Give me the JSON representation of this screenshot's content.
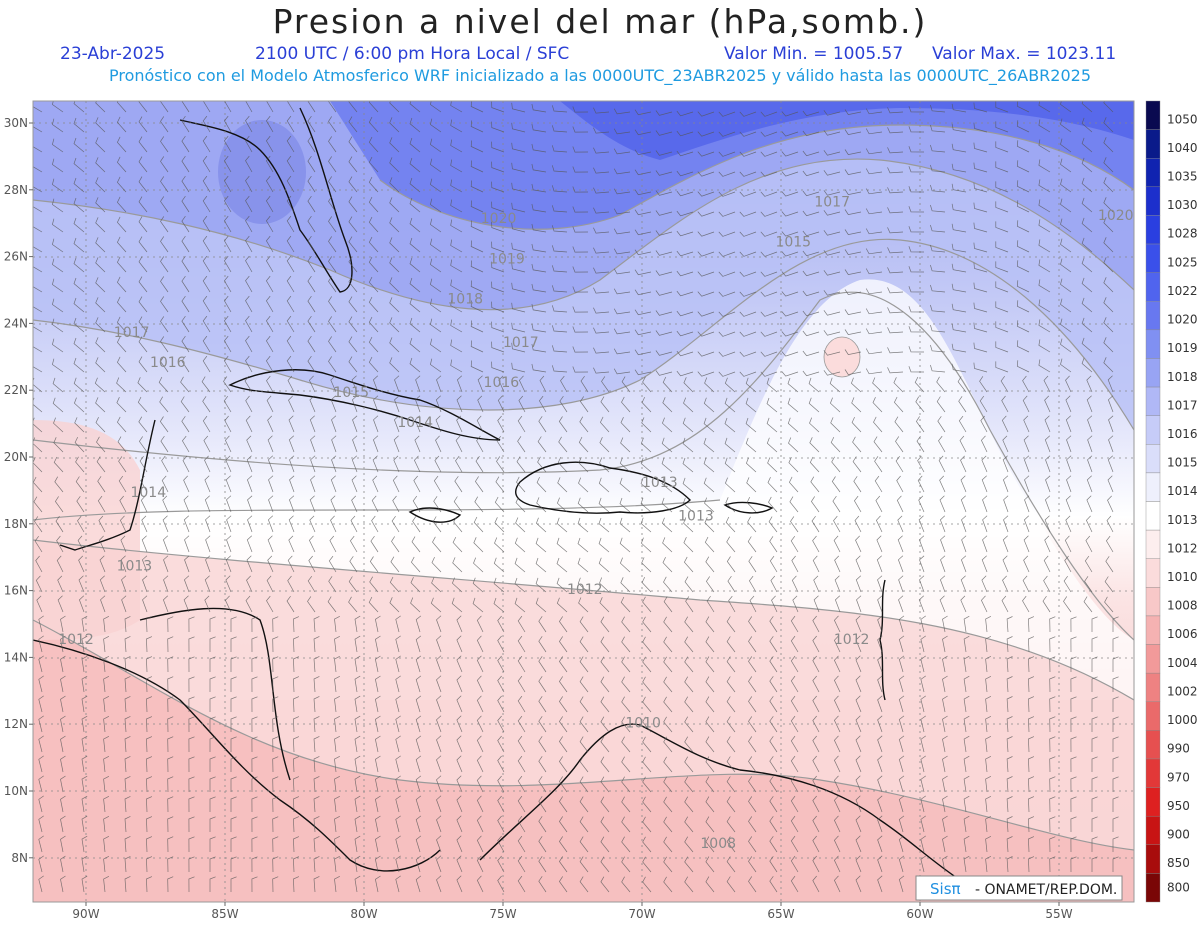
{
  "header": {
    "title": "Presion a nivel del mar (hPa,somb.)",
    "date": "23-Abr-2025",
    "time": "2100 UTC / 6:00 pm Hora Local / SFC",
    "min": "Valor Min. = 1005.57",
    "max": "Valor Max. = 1023.11",
    "forecast": "Pronóstico con el Modelo Atmosferico WRF inicializado a las 0000UTC_23ABR2025 y válido hasta las  0000UTC_26ABR2025"
  },
  "axes": {
    "lat_labels": [
      "30N",
      "28N",
      "26N",
      "24N",
      "22N",
      "20N",
      "18N",
      "16N",
      "14N",
      "12N",
      "10N",
      "8N"
    ],
    "lon_labels": [
      "90W",
      "85W",
      "80W",
      "75W",
      "70W",
      "65W",
      "60W",
      "55W"
    ]
  },
  "colorbar": [
    {
      "label": "1050",
      "color": "#0a0a50"
    },
    {
      "label": "1040",
      "color": "#0a1a8a"
    },
    {
      "label": "1035",
      "color": "#1023b0"
    },
    {
      "label": "1030",
      "color": "#1c2fcc"
    },
    {
      "label": "1028",
      "color": "#2a3fe0"
    },
    {
      "label": "1025",
      "color": "#3a50ea"
    },
    {
      "label": "1022",
      "color": "#5064ee"
    },
    {
      "label": "1020",
      "color": "#6878f0"
    },
    {
      "label": "1019",
      "color": "#8090f2"
    },
    {
      "label": "1018",
      "color": "#98a4f4"
    },
    {
      "label": "1017",
      "color": "#b0b8f6"
    },
    {
      "label": "1016",
      "color": "#c6ccf8"
    },
    {
      "label": "1015",
      "color": "#dadefa"
    },
    {
      "label": "1014",
      "color": "#eef0fc"
    },
    {
      "label": "1013",
      "color": "#ffffff"
    },
    {
      "label": "1012",
      "color": "#fdeeee"
    },
    {
      "label": "1010",
      "color": "#fbdcdc"
    },
    {
      "label": "1008",
      "color": "#f8c8c8"
    },
    {
      "label": "1006",
      "color": "#f5b2b2"
    },
    {
      "label": "1004",
      "color": "#f29a9a"
    },
    {
      "label": "1002",
      "color": "#ee8282"
    },
    {
      "label": "1000",
      "color": "#ea6a6a"
    },
    {
      "label": "990",
      "color": "#e65050"
    },
    {
      "label": "970",
      "color": "#e23838"
    },
    {
      "label": "950",
      "color": "#de2020"
    },
    {
      "label": "900",
      "color": "#c81414"
    },
    {
      "label": "850",
      "color": "#a80c0c"
    },
    {
      "label": "800",
      "color": "#7a0606"
    }
  ],
  "contour_labels": [
    {
      "text": "1017",
      "lon": -63.8,
      "lat": 27.5
    },
    {
      "text": "1020",
      "lon": -53.6,
      "lat": 27.1
    },
    {
      "text": "1020",
      "lon": -75.8,
      "lat": 27.0
    },
    {
      "text": "1015",
      "lon": -65.2,
      "lat": 26.3
    },
    {
      "text": "1019",
      "lon": -75.5,
      "lat": 25.8
    },
    {
      "text": "1018",
      "lon": -77.0,
      "lat": 24.6
    },
    {
      "text": "1017",
      "lon": -89.0,
      "lat": 23.6
    },
    {
      "text": "1017",
      "lon": -75.0,
      "lat": 23.3
    },
    {
      "text": "1016",
      "lon": -87.7,
      "lat": 22.7
    },
    {
      "text": "1016",
      "lon": -75.7,
      "lat": 22.1
    },
    {
      "text": "1015",
      "lon": -81.1,
      "lat": 21.8
    },
    {
      "text": "1014",
      "lon": -78.8,
      "lat": 20.9
    },
    {
      "text": "1014",
      "lon": -88.4,
      "lat": 18.8
    },
    {
      "text": "1013",
      "lon": -70.0,
      "lat": 19.1
    },
    {
      "text": "1013",
      "lon": -68.7,
      "lat": 18.1
    },
    {
      "text": "1013",
      "lon": -88.9,
      "lat": 16.6
    },
    {
      "text": "1012",
      "lon": -72.7,
      "lat": 15.9
    },
    {
      "text": "1012",
      "lon": -91.0,
      "lat": 14.4
    },
    {
      "text": "1012",
      "lon": -63.1,
      "lat": 14.4
    },
    {
      "text": "1010",
      "lon": -70.6,
      "lat": 11.9
    },
    {
      "text": "1008",
      "lon": -67.9,
      "lat": 8.3
    }
  ],
  "watermark": {
    "brand": "Sisπ",
    "text": "- ONAMET/REP.DOM."
  },
  "colors": {
    "header_blue": "#2a3fd6",
    "header_cyan": "#1f9be0"
  }
}
